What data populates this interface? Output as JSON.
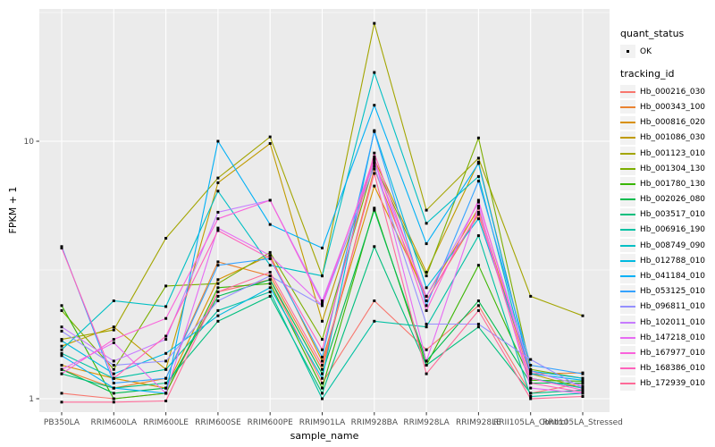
{
  "figure": {
    "background": "#FFFFFF",
    "panel_background": "#EBEBEB",
    "grid_color": "#FFFFFF",
    "tick_mark_color": "#333333",
    "tick_label_color": "#4D4D4D",
    "point_color": "#000000",
    "legend_key_background": "#F2F2F2"
  },
  "chart_data": {
    "type": "line",
    "title": "",
    "xlabel": "sample_name",
    "ylabel": "FPKM + 1",
    "y_scale": "log10",
    "ylim": [
      0.88,
      33
    ],
    "y_ticks": [
      1,
      10
    ],
    "y_tick_labels": [
      "1",
      "10"
    ],
    "y_minor_ticks": [
      3.1623,
      31.623
    ],
    "grid": true,
    "legend_position": "right",
    "point_marker": "small-black-square",
    "categories": [
      "PB350LA",
      "RRIM600LA",
      "RRIM600LE",
      "RRIM600SE",
      "RRIM600PE",
      "RRIM901LA",
      "RRIM928BA",
      "RRIM928LA",
      "RRIM928LE",
      "RRII105LA_Control",
      "RRII105LA_Stressed"
    ],
    "legend": {
      "quant_status": {
        "title": "quant_status",
        "items": [
          {
            "label": "OK",
            "marker": "black-point"
          }
        ]
      },
      "tracking_id": {
        "title": "tracking_id"
      }
    },
    "series": [
      {
        "name": "Hb_000216_030",
        "color": "#F8766D",
        "values": [
          1.05,
          1.0,
          1.05,
          2.6,
          2.9,
          1.15,
          2.4,
          1.55,
          2.3,
          1.05,
          1.15
        ]
      },
      {
        "name": "Hb_000343_100",
        "color": "#EA8331",
        "values": [
          1.3,
          1.1,
          1.2,
          3.4,
          3.0,
          1.3,
          7.8,
          2.4,
          5.2,
          1.25,
          1.26
        ]
      },
      {
        "name": "Hb_000816_020",
        "color": "#D89000",
        "values": [
          1.35,
          1.2,
          1.1,
          2.9,
          3.6,
          1.4,
          6.7,
          2.5,
          5.5,
          1.2,
          1.1
        ]
      },
      {
        "name": "Hb_001086_030",
        "color": "#C09B00",
        "values": [
          1.6,
          1.9,
          1.3,
          6.9,
          9.8,
          2.0,
          8.5,
          3.1,
          8.3,
          1.25,
          1.1
        ]
      },
      {
        "name": "Hb_001123_010",
        "color": "#A3A500",
        "values": [
          1.7,
          1.85,
          4.2,
          7.2,
          10.4,
          3.0,
          28.7,
          5.4,
          8.6,
          2.5,
          2.1
        ]
      },
      {
        "name": "Hb_001304_130",
        "color": "#7CAE00",
        "values": [
          2.2,
          1.3,
          2.74,
          2.8,
          3.7,
          1.7,
          8.2,
          3.0,
          10.3,
          1.3,
          1.2
        ]
      },
      {
        "name": "Hb_001780_130",
        "color": "#39B600",
        "values": [
          2.3,
          1.0,
          1.05,
          2.7,
          2.8,
          1.1,
          5.5,
          1.35,
          3.3,
          1.18,
          1.17
        ]
      },
      {
        "name": "Hb_002026_080",
        "color": "#00BB4E",
        "values": [
          1.3,
          1.05,
          1.1,
          2.5,
          2.9,
          1.25,
          5.4,
          1.4,
          2.4,
          1.15,
          1.15
        ]
      },
      {
        "name": "Hb_003517_010",
        "color": "#00BF7D",
        "values": [
          1.25,
          1.1,
          1.15,
          2.0,
          2.5,
          1.05,
          3.9,
          1.35,
          1.9,
          1.05,
          1.08
        ]
      },
      {
        "name": "Hb_006916_190",
        "color": "#00C1A3",
        "values": [
          1.5,
          1.2,
          1.3,
          2.2,
          2.6,
          1.0,
          2.0,
          1.9,
          4.3,
          1.02,
          1.05
        ]
      },
      {
        "name": "Hb_008749_090",
        "color": "#00BFC4",
        "values": [
          1.55,
          2.4,
          2.28,
          6.4,
          3.3,
          3.0,
          18.5,
          4.8,
          7.3,
          1.2,
          1.1
        ]
      },
      {
        "name": "Hb_012788_010",
        "color": "#00BAE0",
        "values": [
          1.68,
          1.25,
          1.5,
          2.1,
          2.7,
          1.2,
          11.0,
          2.7,
          5.0,
          1.28,
          1.2
        ]
      },
      {
        "name": "Hb_041184_010",
        "color": "#00B0F6",
        "values": [
          1.47,
          1.1,
          1.05,
          10.0,
          4.75,
          3.85,
          13.8,
          4.0,
          8.2,
          1.25,
          1.18
        ]
      },
      {
        "name": "Hb_053125_010",
        "color": "#35A2FF",
        "values": [
          3.9,
          1.15,
          1.2,
          3.3,
          3.5,
          1.45,
          10.9,
          2.3,
          7.0,
          1.35,
          1.25
        ]
      },
      {
        "name": "Hb_096811_010",
        "color": "#9590FF",
        "values": [
          1.83,
          1.35,
          1.4,
          2.4,
          3.0,
          2.3,
          8.0,
          1.95,
          1.95,
          1.42,
          1.1
        ]
      },
      {
        "name": "Hb_102011_010",
        "color": "#C77CFF",
        "values": [
          1.9,
          1.4,
          1.7,
          5.3,
          5.9,
          2.4,
          8.3,
          2.5,
          5.8,
          1.28,
          1.12
        ]
      },
      {
        "name": "Hb_147218_010",
        "color": "#E76BF3",
        "values": [
          1.3,
          1.65,
          1.05,
          4.6,
          3.6,
          2.3,
          8.7,
          1.4,
          5.6,
          1.1,
          1.05
        ]
      },
      {
        "name": "Hb_167977_010",
        "color": "#FA62DB",
        "values": [
          1.25,
          1.7,
          2.05,
          5.0,
          5.9,
          2.35,
          8.5,
          2.2,
          5.9,
          1.2,
          1.08
        ]
      },
      {
        "name": "Hb_168386_010",
        "color": "#FF62BC",
        "values": [
          3.85,
          1.2,
          1.75,
          4.5,
          3.5,
          1.55,
          9.0,
          2.4,
          5.3,
          1.15,
          1.06
        ]
      },
      {
        "name": "Hb_172939_010",
        "color": "#FF6A98",
        "values": [
          0.97,
          0.97,
          0.98,
          2.6,
          3.1,
          1.35,
          7.5,
          1.25,
          2.2,
          1.0,
          1.02
        ]
      }
    ]
  }
}
